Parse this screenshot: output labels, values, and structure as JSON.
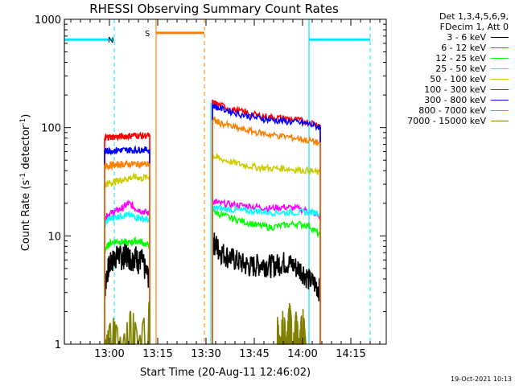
{
  "chart_data": {
    "type": "line",
    "title": "RHESSI Observing Summary Count Rates",
    "xlabel": "Start Time (20-Aug-11 12:46:02)",
    "ylabel_main": "Count Rate (s",
    "ylabel_sup1": "-1",
    "ylabel_mid": " detector",
    "ylabel_sup2": "-1",
    "ylabel_end": ")",
    "y_scale": "log",
    "ylim": [
      1,
      1000
    ],
    "xlim_minutes": [
      0,
      100
    ],
    "x_ticks": [
      {
        "minute": 14,
        "label": "13:00"
      },
      {
        "minute": 29,
        "label": "13:15"
      },
      {
        "minute": 44,
        "label": "13:30"
      },
      {
        "minute": 59,
        "label": "13:45"
      },
      {
        "minute": 74,
        "label": "14:00"
      },
      {
        "minute": 89,
        "label": "14:15"
      }
    ],
    "y_ticks": [
      {
        "value": 1,
        "label": "1"
      },
      {
        "value": 10,
        "label": "10"
      },
      {
        "value": 100,
        "label": "100"
      },
      {
        "value": 1000,
        "label": "1000"
      }
    ],
    "legend_header": [
      "Det 1,3,4,5,6,9,",
      "FDecim 1, Att 0"
    ],
    "series": [
      {
        "name": "3 - 6 keV",
        "color": "#000000",
        "segments": [
          {
            "x": [
              12.5,
              13,
              14,
              15,
              16,
              17,
              18,
              19,
              20,
              21,
              22,
              23,
              24,
              25,
              26.5
            ],
            "y": [
              3,
              4.2,
              5.5,
              6,
              6.5,
              6.8,
              6.2,
              7,
              6.5,
              6,
              6.8,
              5.8,
              6.2,
              5,
              4
            ]
          },
          {
            "x": [
              46,
              47,
              48,
              50,
              52,
              54,
              56,
              58,
              60,
              62,
              64,
              66,
              68,
              70,
              72,
              74,
              76,
              78,
              79.5
            ],
            "y": [
              9,
              8.5,
              7.5,
              6.8,
              6.3,
              5.9,
              5.5,
              5.3,
              5.5,
              5.6,
              5.4,
              5.5,
              5.8,
              5.6,
              5.2,
              4.8,
              4,
              3.6,
              3.2
            ]
          }
        ]
      },
      {
        "name": "6 - 12 keV",
        "color": "#ff00ff",
        "segments": [
          {
            "x": [
              12.5,
              13,
              14,
              16,
              18,
              20,
              22,
              24,
              26.5
            ],
            "y": [
              13,
              15,
              16,
              17,
              18,
              20,
              18,
              17,
              16
            ]
          },
          {
            "x": [
              46,
              48,
              52,
              56,
              60,
              64,
              68,
              72,
              76,
              79.5
            ],
            "y": [
              21,
              20,
              19.5,
              19,
              18.5,
              18,
              18.5,
              18,
              17,
              15
            ]
          }
        ]
      },
      {
        "name": "12 - 25 keV",
        "color": "#00ff00",
        "segments": [
          {
            "x": [
              12.5,
              13,
              14,
              16,
              18,
              20,
              22,
              24,
              26.5
            ],
            "y": [
              7,
              7.8,
              8.5,
              9,
              8.8,
              8.6,
              9,
              8.8,
              8
            ]
          },
          {
            "x": [
              46,
              48,
              52,
              56,
              60,
              64,
              68,
              72,
              76,
              79.5
            ],
            "y": [
              17,
              16,
              14.5,
              13.5,
              12.5,
              12,
              12.5,
              13,
              12.5,
              10
            ]
          }
        ]
      },
      {
        "name": "25 - 50 keV",
        "color": "#00ffff",
        "segments": [
          {
            "x": [
              12.5,
              13,
              14,
              16,
              18,
              20,
              22,
              24,
              26.5
            ],
            "y": [
              12,
              13.5,
              14.5,
              15,
              15.5,
              15.5,
              15,
              14.5,
              14
            ]
          },
          {
            "x": [
              46,
              48,
              52,
              56,
              60,
              64,
              68,
              72,
              76,
              79.5
            ],
            "y": [
              18,
              18,
              17.5,
              17,
              17,
              16.5,
              16.5,
              16.5,
              16.5,
              16.5
            ]
          }
        ]
      },
      {
        "name": "50 - 100 keV",
        "color": "#cccc00",
        "segments": [
          {
            "x": [
              12.5,
              13,
              14,
              16,
              18,
              20,
              22,
              24,
              26.5
            ],
            "y": [
              29,
              30,
              31,
              32,
              33,
              34,
              35,
              34,
              35
            ]
          },
          {
            "x": [
              46,
              48,
              52,
              56,
              60,
              64,
              68,
              72,
              76,
              79.5
            ],
            "y": [
              55,
              52,
              48,
              45,
              43,
              42,
              42,
              41,
              40,
              38
            ]
          }
        ]
      },
      {
        "name": "100 - 300 keV",
        "color": "#ff0000",
        "segments": [
          {
            "x": [
              12.5,
              13,
              14,
              16,
              18,
              20,
              22,
              24,
              26.5
            ],
            "y": [
              80,
              81,
              82,
              82,
              83,
              84,
              85,
              84,
              85
            ]
          },
          {
            "x": [
              46,
              48,
              52,
              56,
              60,
              64,
              68,
              72,
              76,
              79.5
            ],
            "y": [
              170,
              162,
              148,
              138,
              130,
              125,
              122,
              118,
              112,
              106
            ]
          }
        ]
      },
      {
        "name": "300 - 800 keV",
        "color": "#0000ff",
        "segments": [
          {
            "x": [
              12.5,
              13,
              14,
              16,
              18,
              20,
              22,
              24,
              26.5
            ],
            "y": [
              60,
              61,
              61,
              62,
              62,
              62,
              62,
              63,
              62
            ]
          },
          {
            "x": [
              46,
              48,
              52,
              56,
              60,
              64,
              68,
              72,
              76,
              79.5
            ],
            "y": [
              160,
              152,
              140,
              130,
              123,
              118,
              115,
              112,
              108,
              100
            ]
          }
        ]
      },
      {
        "name": "800 - 7000 keV",
        "color": "#ff8000",
        "segments": [
          {
            "x": [
              12.5,
              13,
              14,
              16,
              18,
              20,
              22,
              24,
              26.5
            ],
            "y": [
              44,
              44,
              45,
              45,
              46,
              46,
              46,
              46,
              46
            ]
          },
          {
            "x": [
              46,
              48,
              52,
              56,
              60,
              64,
              68,
              72,
              76,
              79.5
            ],
            "y": [
              118,
              112,
              102,
              95,
              90,
              86,
              83,
              80,
              76,
              72
            ]
          }
        ]
      },
      {
        "name": "7000 - 15000 keV",
        "color": "#808000",
        "segments": [
          {
            "x": [
              12.5,
              15,
              18,
              21,
              23,
              26.5
            ],
            "y": [
              1,
              1.8,
              1,
              2.2,
              1,
              2.5
            ]
          },
          {
            "x": [
              66,
              67,
              68,
              69,
              70,
              71,
              72,
              73,
              74,
              75
            ],
            "y": [
              2,
              1,
              2.2,
              1,
              2.5,
              1,
              2,
              1,
              2.3,
              1
            ]
          }
        ]
      }
    ],
    "annotations": {
      "cyan_flag_label": "N",
      "orange_flag_label": "S",
      "night_level": 650,
      "saa_level": 750,
      "cyan_solid_minutes": [
        0,
        76
      ],
      "cyan_dashed_minutes": [
        15.5,
        95
      ],
      "orange_solid_minutes": [
        28.5
      ],
      "orange_dashed_minutes": [
        43.5
      ],
      "red_solid_minute": 79.5,
      "night_spans": [
        [
          0,
          15.5
        ],
        [
          76,
          95
        ]
      ],
      "saa_span": [
        28.5,
        43.5
      ],
      "cyan_span2": [
        45.5,
        76
      ]
    }
  },
  "timestamp": "19-Oct-2021 10:13"
}
